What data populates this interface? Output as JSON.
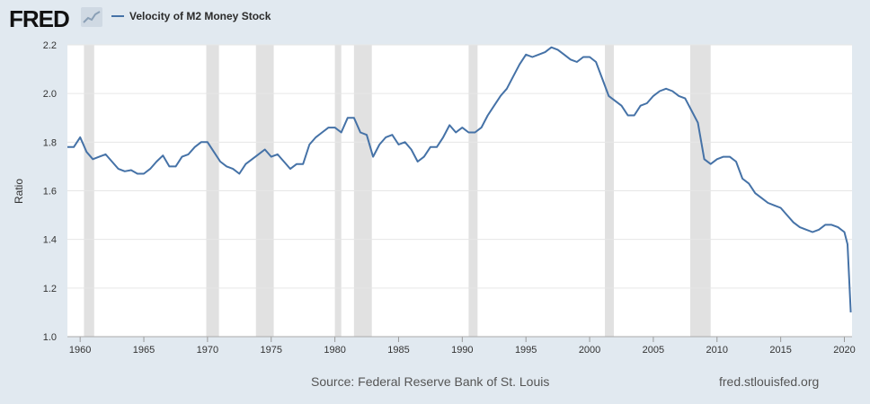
{
  "brand": {
    "logo_text": "FRED"
  },
  "legend": {
    "series_label": "Velocity of M2 Money Stock",
    "color": "#4572a7"
  },
  "footer": {
    "source": "Source: Federal Reserve Bank of St. Louis",
    "url": "fred.stlouisfed.org"
  },
  "chart_data": {
    "type": "line",
    "ylabel": "Ratio",
    "xlim": [
      1959,
      2020.6
    ],
    "ylim": [
      1.0,
      2.2
    ],
    "yticks": [
      1.0,
      1.2,
      1.4,
      1.6,
      1.8,
      2.0,
      2.2
    ],
    "yticklabels": [
      "1.0",
      "1.2",
      "1.4",
      "1.6",
      "1.8",
      "2.0",
      "2.2"
    ],
    "xticks": [
      1960,
      1965,
      1970,
      1975,
      1980,
      1985,
      1990,
      1995,
      2000,
      2005,
      2010,
      2015,
      2020
    ],
    "xticklabels": [
      "1960",
      "1965",
      "1970",
      "1975",
      "1980",
      "1985",
      "1990",
      "1995",
      "2000",
      "2005",
      "2010",
      "2015",
      "2020"
    ],
    "grid": true,
    "recessions": [
      [
        1960.3,
        1961.1
      ],
      [
        1969.9,
        1970.9
      ],
      [
        1973.8,
        1975.2
      ],
      [
        1980.0,
        1980.5
      ],
      [
        1981.5,
        1982.9
      ],
      [
        1990.5,
        1991.2
      ],
      [
        2001.2,
        2001.9
      ],
      [
        2007.9,
        2009.5
      ]
    ],
    "series": [
      {
        "name": "Velocity of M2 Money Stock",
        "color": "#4572a7",
        "x": [
          1959.0,
          1959.5,
          1960.0,
          1960.5,
          1961.0,
          1961.5,
          1962.0,
          1962.5,
          1963.0,
          1963.5,
          1964.0,
          1964.5,
          1965.0,
          1965.5,
          1966.0,
          1966.5,
          1967.0,
          1967.5,
          1968.0,
          1968.5,
          1969.0,
          1969.5,
          1970.0,
          1970.5,
          1971.0,
          1971.5,
          1972.0,
          1972.5,
          1973.0,
          1973.5,
          1974.0,
          1974.5,
          1975.0,
          1975.5,
          1976.0,
          1976.5,
          1977.0,
          1977.5,
          1978.0,
          1978.5,
          1979.0,
          1979.5,
          1980.0,
          1980.5,
          1981.0,
          1981.5,
          1982.0,
          1982.5,
          1983.0,
          1983.5,
          1984.0,
          1984.5,
          1985.0,
          1985.5,
          1986.0,
          1986.5,
          1987.0,
          1987.5,
          1988.0,
          1988.5,
          1989.0,
          1989.5,
          1990.0,
          1990.5,
          1991.0,
          1991.5,
          1992.0,
          1992.5,
          1993.0,
          1993.5,
          1994.0,
          1994.5,
          1995.0,
          1995.5,
          1996.0,
          1996.5,
          1997.0,
          1997.5,
          1998.0,
          1998.5,
          1999.0,
          1999.5,
          2000.0,
          2000.5,
          2001.0,
          2001.5,
          2002.0,
          2002.5,
          2003.0,
          2003.5,
          2004.0,
          2004.5,
          2005.0,
          2005.5,
          2006.0,
          2006.5,
          2007.0,
          2007.5,
          2008.0,
          2008.5,
          2009.0,
          2009.5,
          2010.0,
          2010.5,
          2011.0,
          2011.5,
          2012.0,
          2012.5,
          2013.0,
          2013.5,
          2014.0,
          2014.5,
          2015.0,
          2015.5,
          2016.0,
          2016.5,
          2017.0,
          2017.5,
          2018.0,
          2018.5,
          2019.0,
          2019.5,
          2020.0,
          2020.25,
          2020.5
        ],
        "values": [
          1.78,
          1.78,
          1.82,
          1.76,
          1.73,
          1.74,
          1.75,
          1.72,
          1.69,
          1.68,
          1.685,
          1.67,
          1.67,
          1.69,
          1.72,
          1.745,
          1.7,
          1.7,
          1.74,
          1.75,
          1.78,
          1.8,
          1.8,
          1.76,
          1.72,
          1.7,
          1.69,
          1.67,
          1.71,
          1.73,
          1.75,
          1.77,
          1.74,
          1.75,
          1.72,
          1.69,
          1.71,
          1.71,
          1.79,
          1.82,
          1.84,
          1.86,
          1.86,
          1.84,
          1.9,
          1.9,
          1.84,
          1.83,
          1.74,
          1.79,
          1.82,
          1.83,
          1.79,
          1.8,
          1.77,
          1.72,
          1.74,
          1.78,
          1.78,
          1.82,
          1.87,
          1.84,
          1.86,
          1.84,
          1.84,
          1.86,
          1.91,
          1.95,
          1.99,
          2.02,
          2.07,
          2.12,
          2.16,
          2.15,
          2.16,
          2.17,
          2.19,
          2.18,
          2.16,
          2.14,
          2.13,
          2.15,
          2.15,
          2.13,
          2.06,
          1.99,
          1.97,
          1.95,
          1.91,
          1.91,
          1.95,
          1.96,
          1.99,
          2.01,
          2.02,
          2.01,
          1.99,
          1.98,
          1.93,
          1.88,
          1.73,
          1.71,
          1.73,
          1.74,
          1.74,
          1.72,
          1.65,
          1.63,
          1.59,
          1.57,
          1.55,
          1.54,
          1.53,
          1.5,
          1.47,
          1.45,
          1.44,
          1.43,
          1.44,
          1.46,
          1.46,
          1.45,
          1.43,
          1.38,
          1.1
        ]
      }
    ]
  }
}
